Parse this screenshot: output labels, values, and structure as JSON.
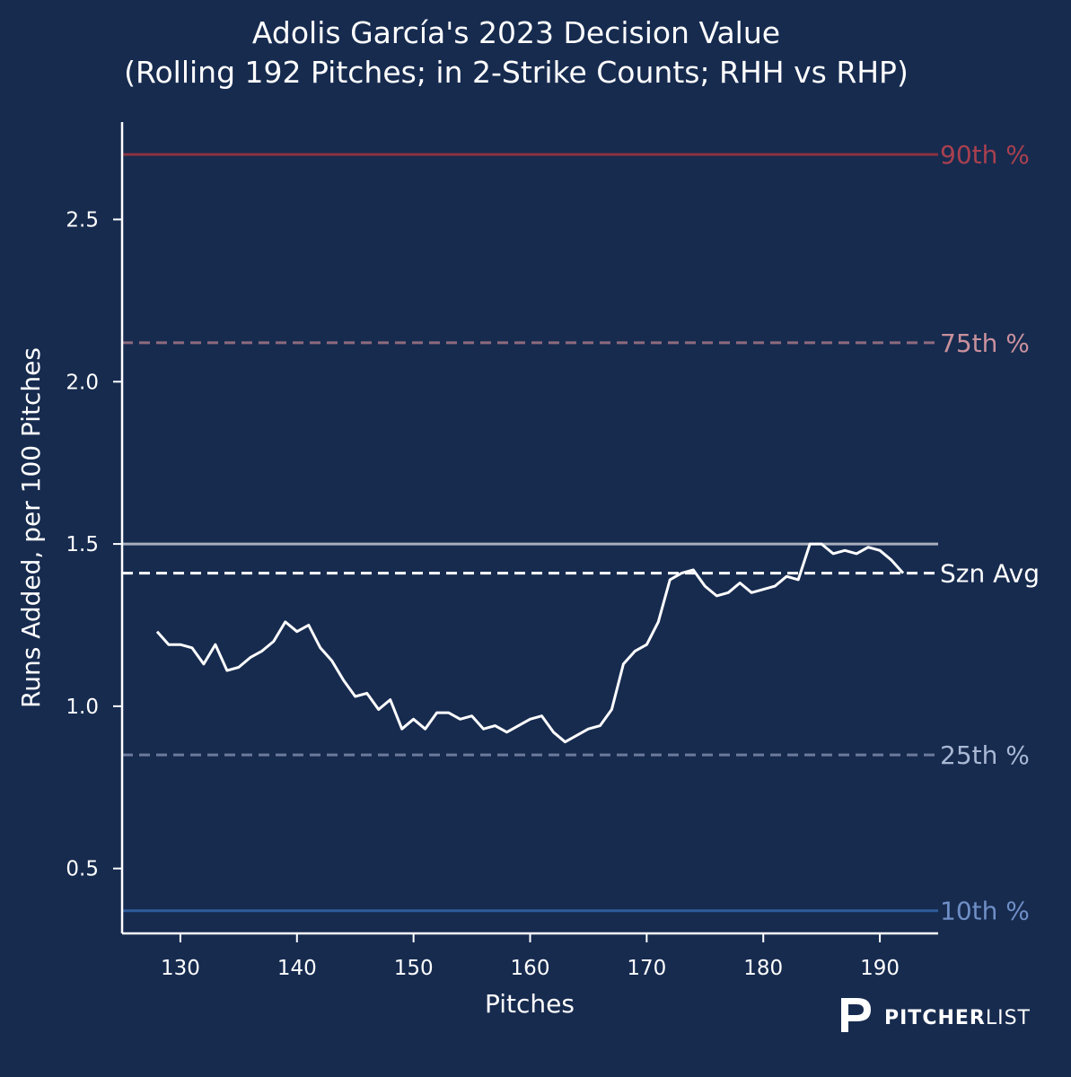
{
  "chart_data": {
    "type": "line",
    "title": "Adolis García's 2023 Decision Value",
    "subtitle": "(Rolling 192 Pitches; in 2-Strike Counts; RHH vs RHP)",
    "xlabel": "Pitches",
    "ylabel": "Runs Added, per 100 Pitches",
    "xlim": [
      125,
      195
    ],
    "ylim": [
      0.3,
      2.8
    ],
    "x_ticks": [
      130,
      140,
      150,
      160,
      170,
      180,
      190
    ],
    "x_tick_labels": [
      "130",
      "140",
      "150",
      "160",
      "170",
      "180",
      "190"
    ],
    "y_ticks": [
      0.5,
      1.0,
      1.5,
      2.0,
      2.5
    ],
    "y_tick_labels": [
      "0.5",
      "1.0",
      "1.5",
      "2.0",
      "2.5"
    ],
    "grid": false,
    "series": [
      {
        "color": "#ffffff",
        "x": [
          128,
          129,
          130,
          131,
          132,
          133,
          134,
          135,
          136,
          137,
          138,
          139,
          140,
          141,
          142,
          143,
          144,
          145,
          146,
          147,
          148,
          149,
          150,
          151,
          152,
          153,
          154,
          155,
          156,
          157,
          158,
          159,
          160,
          161,
          162,
          163,
          164,
          165,
          166,
          167,
          168,
          169,
          170,
          171,
          172,
          173,
          174,
          175,
          176,
          177,
          178,
          179,
          180,
          181,
          182,
          183,
          184,
          185,
          186,
          187,
          188,
          189,
          190,
          191,
          192
        ],
        "values": [
          1.23,
          1.19,
          1.19,
          1.18,
          1.13,
          1.19,
          1.11,
          1.12,
          1.15,
          1.17,
          1.2,
          1.26,
          1.23,
          1.25,
          1.18,
          1.14,
          1.08,
          1.03,
          1.04,
          0.99,
          1.02,
          0.93,
          0.96,
          0.93,
          0.98,
          0.98,
          0.96,
          0.97,
          0.93,
          0.94,
          0.92,
          0.94,
          0.96,
          0.97,
          0.92,
          0.89,
          0.91,
          0.93,
          0.94,
          0.99,
          1.13,
          1.17,
          1.19,
          1.26,
          1.39,
          1.41,
          1.42,
          1.37,
          1.34,
          1.35,
          1.38,
          1.35,
          1.36,
          1.37,
          1.4,
          1.39,
          1.5,
          1.5,
          1.47,
          1.48,
          1.47,
          1.49,
          1.48,
          1.45,
          1.41
        ]
      }
    ],
    "reference_lines": [
      {
        "label": "90th %",
        "value": 2.7,
        "style": "solid",
        "color": "#8c3341",
        "label_color": "#a9404f"
      },
      {
        "label": "75th %",
        "value": 2.12,
        "style": "dashed",
        "color": "#8e6b7d",
        "label_color": "#c9919c"
      },
      {
        "label": "",
        "value": 1.5,
        "style": "solid",
        "color": "#a9aebd",
        "label_color": "#a9aebd"
      },
      {
        "label": "Szn Avg",
        "value": 1.41,
        "style": "dashed",
        "color": "#ffffff",
        "label_color": "#ffffff"
      },
      {
        "label": "25th %",
        "value": 0.85,
        "style": "dashed",
        "color": "#6c7a9b",
        "label_color": "#a9b8d4"
      },
      {
        "label": "10th %",
        "value": 0.37,
        "style": "solid",
        "color": "#2f5c99",
        "label_color": "#6f8fc6"
      }
    ]
  },
  "branding": {
    "logo_bold": "PITCHER",
    "logo_light": "LIST"
  }
}
